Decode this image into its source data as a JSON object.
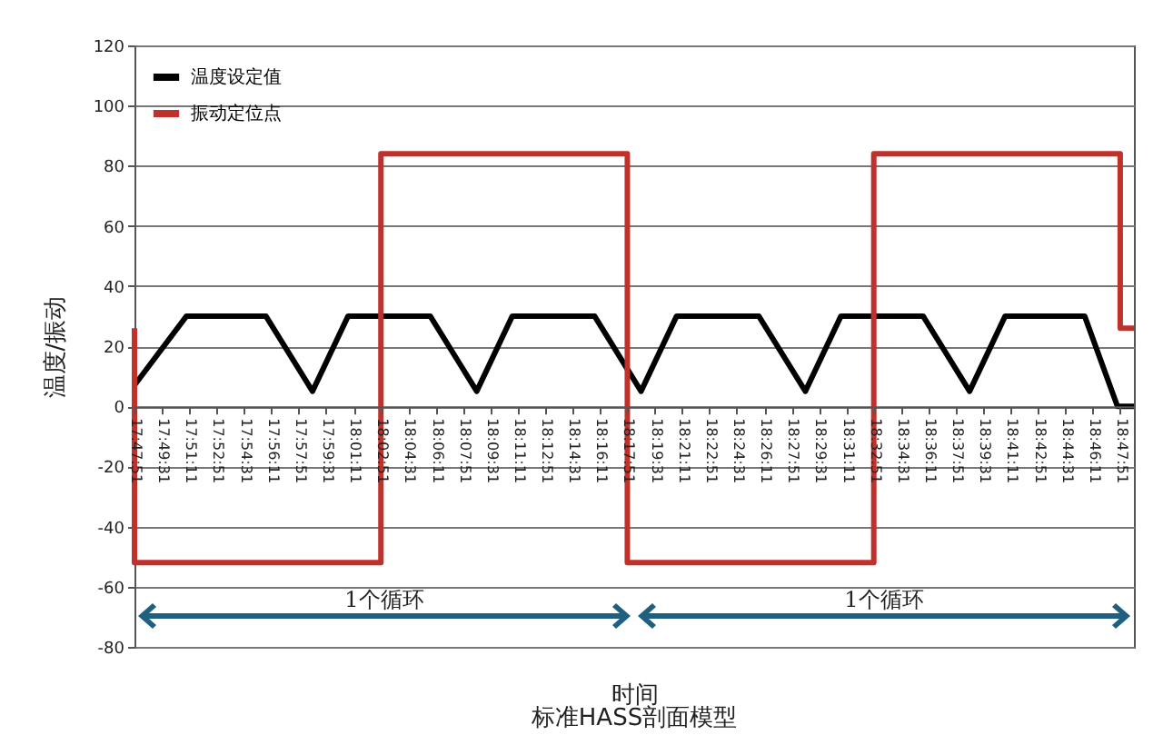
{
  "chart_data": {
    "type": "line",
    "title": "标准HASS剖面模型",
    "xlabel": "时间",
    "ylabel": "温度/振动",
    "xlim": [
      17.7975,
      18.8114
    ],
    "ylim": [
      -80,
      120
    ],
    "yticks": [
      -80,
      -60,
      -40,
      -20,
      0,
      20,
      40,
      60,
      80,
      100,
      120
    ],
    "xticks": [
      {
        "value": 17.7975,
        "label": "17:47:51"
      },
      {
        "value": 17.8253,
        "label": "17:49:31"
      },
      {
        "value": 17.8531,
        "label": "17:51:11"
      },
      {
        "value": 17.8808,
        "label": "17:52:51"
      },
      {
        "value": 17.9086,
        "label": "17:54:31"
      },
      {
        "value": 17.9364,
        "label": "17:56:11"
      },
      {
        "value": 17.9642,
        "label": "17:57:51"
      },
      {
        "value": 17.9919,
        "label": "17:59:31"
      },
      {
        "value": 18.0197,
        "label": "18:01:11"
      },
      {
        "value": 18.0475,
        "label": "18:02:51"
      },
      {
        "value": 18.0753,
        "label": "18:04:31"
      },
      {
        "value": 18.1031,
        "label": "18:06:11"
      },
      {
        "value": 18.1308,
        "label": "18:07:51"
      },
      {
        "value": 18.1586,
        "label": "18:09:31"
      },
      {
        "value": 18.1864,
        "label": "18:11:11"
      },
      {
        "value": 18.2142,
        "label": "18:12:51"
      },
      {
        "value": 18.2419,
        "label": "18:14:31"
      },
      {
        "value": 18.2697,
        "label": "18:16:11"
      },
      {
        "value": 18.2975,
        "label": "18:17:51"
      },
      {
        "value": 18.3253,
        "label": "18:19:31"
      },
      {
        "value": 18.3531,
        "label": "18:21:11"
      },
      {
        "value": 18.3808,
        "label": "18:22:51"
      },
      {
        "value": 18.4086,
        "label": "18:24:31"
      },
      {
        "value": 18.4364,
        "label": "18:26:11"
      },
      {
        "value": 18.4642,
        "label": "18:27:51"
      },
      {
        "value": 18.4919,
        "label": "18:29:31"
      },
      {
        "value": 18.5197,
        "label": "18:31:11"
      },
      {
        "value": 18.5475,
        "label": "18:32:51"
      },
      {
        "value": 18.5753,
        "label": "18:34:31"
      },
      {
        "value": 18.6031,
        "label": "18:36:11"
      },
      {
        "value": 18.6308,
        "label": "18:37:51"
      },
      {
        "value": 18.6586,
        "label": "18:39:31"
      },
      {
        "value": 18.6864,
        "label": "18:41:11"
      },
      {
        "value": 18.7142,
        "label": "18:42:51"
      },
      {
        "value": 18.7419,
        "label": "18:44:31"
      },
      {
        "value": 18.7697,
        "label": "18:46:11"
      },
      {
        "value": 18.7975,
        "label": "18:47:51"
      }
    ],
    "series": [
      {
        "name": "温度设定值",
        "color": "#000000",
        "x": [
          17.7975,
          17.8503,
          17.9308,
          17.9781,
          18.0142,
          18.0975,
          18.1447,
          18.1808,
          18.2642,
          18.3114,
          18.3475,
          18.4308,
          18.4781,
          18.5142,
          18.5975,
          18.6447,
          18.6808,
          18.7614,
          18.7947,
          18.8114
        ],
        "values": [
          7,
          30,
          30,
          5,
          30,
          30,
          5,
          30,
          30,
          5,
          30,
          30,
          5,
          30,
          30,
          5,
          30,
          30,
          0,
          0
        ]
      },
      {
        "name": "振动定位点",
        "color": "#c0312b",
        "x": [
          17.7975,
          17.7975,
          18.0475,
          18.0475,
          18.2975,
          18.2975,
          18.5475,
          18.5475,
          18.7975,
          18.7975,
          18.8114
        ],
        "values": [
          26,
          -52,
          -52,
          84,
          84,
          -52,
          -52,
          84,
          84,
          26,
          26
        ]
      }
    ],
    "annotations": [
      "1个循环",
      "1个循环"
    ],
    "grid": "y",
    "legend": "top left"
  }
}
